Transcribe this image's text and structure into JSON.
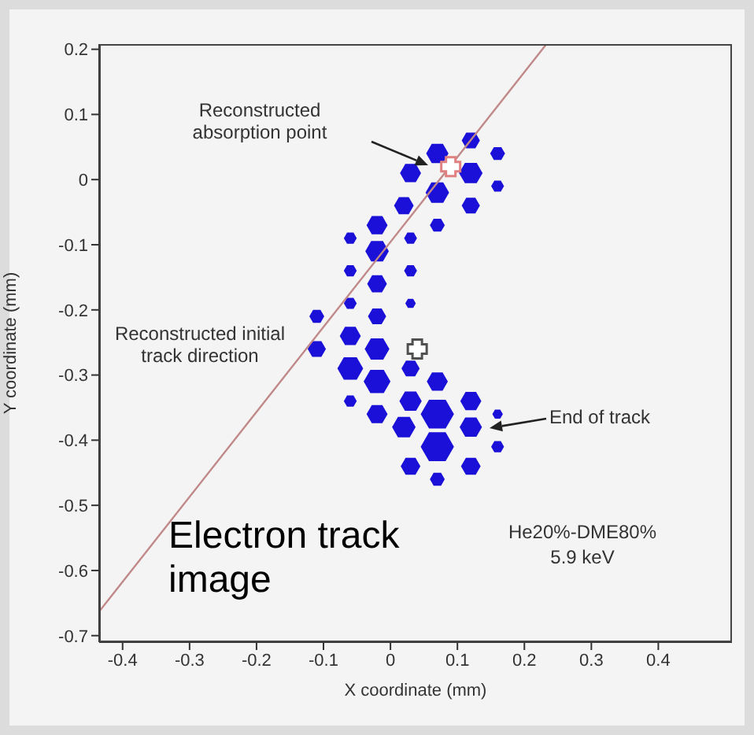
{
  "chart_data": {
    "type": "bubble",
    "xlabel": "X coordinate (mm)",
    "ylabel": "Y coordinate (mm)",
    "xlim": [
      -0.435,
      0.51
    ],
    "ylim": [
      -0.71,
      0.208
    ],
    "xticks": [
      -0.4,
      -0.3,
      -0.2,
      -0.1,
      0,
      0.1,
      0.2,
      0.3,
      0.4
    ],
    "yticks": [
      -0.7,
      -0.6,
      -0.5,
      -0.4,
      -0.3,
      -0.2,
      -0.1,
      0,
      0.1,
      0.2
    ],
    "series": [
      {
        "type": "bubble",
        "color": "#1a10d8",
        "x": [
          0.12,
          0.16,
          0.07,
          0.03,
          0.12,
          0.16,
          0.07,
          0.02,
          0.12,
          -0.02,
          0.07,
          -0.06,
          0.03,
          -0.02,
          -0.06,
          0.03,
          -0.02,
          -0.06,
          0.03,
          -0.11,
          -0.02,
          -0.06,
          -0.11,
          -0.02,
          0.03,
          -0.06,
          -0.02,
          0.07,
          -0.06,
          0.03,
          0.12,
          -0.02,
          0.07,
          0.16,
          0.02,
          0.12,
          0.07,
          0.16,
          0.03,
          0.12,
          0.07
        ],
        "values": [
          0.06,
          0.04,
          0.04,
          0.01,
          0.01,
          -0.01,
          -0.02,
          -0.04,
          -0.04,
          -0.07,
          -0.07,
          -0.09,
          -0.09,
          -0.11,
          -0.14,
          -0.14,
          -0.16,
          -0.19,
          -0.19,
          -0.21,
          -0.21,
          -0.24,
          -0.26,
          -0.26,
          -0.29,
          -0.29,
          -0.31,
          -0.31,
          -0.34,
          -0.34,
          -0.34,
          -0.36,
          -0.36,
          -0.36,
          -0.38,
          -0.38,
          -0.41,
          -0.41,
          -0.44,
          -0.44,
          -0.46
        ],
        "sizes": [
          0.3,
          0.2,
          0.45,
          0.4,
          0.5,
          0.15,
          0.5,
          0.35,
          0.3,
          0.4,
          0.2,
          0.15,
          0.15,
          0.5,
          0.15,
          0.15,
          0.35,
          0.15,
          0.1,
          0.2,
          0.3,
          0.4,
          0.3,
          0.55,
          0.3,
          0.6,
          0.65,
          0.4,
          0.15,
          0.45,
          0.4,
          0.4,
          1,
          0.1,
          0.5,
          0.45,
          1,
          0.15,
          0.35,
          0.35,
          0.2
        ]
      },
      {
        "type": "line",
        "color": "#c08888",
        "x": [
          -0.435,
          0.233
        ],
        "values": [
          -0.663,
          0.208
        ]
      },
      {
        "type": "scatter",
        "marker": "cross",
        "color": "#505050",
        "x": [
          0.04
        ],
        "values": [
          -0.26
        ]
      },
      {
        "type": "scatter",
        "marker": "cross",
        "color": "#e08080",
        "x": [
          0.09
        ],
        "values": [
          0.02
        ]
      }
    ],
    "annotations": [
      "Reconstructed absorption point",
      "Reconstructed initial track direction",
      "End of track",
      "He20%-DME80%",
      "5.9 keV",
      "Electron track image"
    ]
  }
}
